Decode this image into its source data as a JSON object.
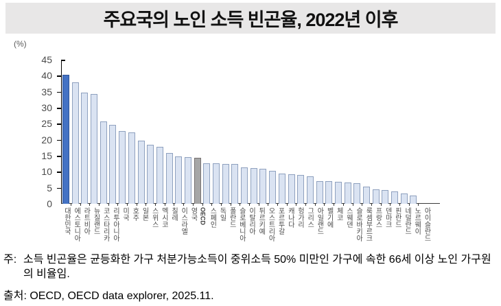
{
  "title": "주요국의 노인 소득 빈곤율, 2022년 이후",
  "y_axis": {
    "unit": "(%)",
    "min": 0,
    "max": 45,
    "step": 5
  },
  "chart_data": {
    "type": "bar",
    "title": "주요국의 노인 소득 빈곤율, 2022년 이후",
    "xlabel": "",
    "ylabel": "(%)",
    "ylim": [
      0,
      45
    ],
    "ytick_step": 5,
    "grid": false,
    "legend": "none",
    "categories": [
      "대한민국",
      "에스토니아",
      "라트비아",
      "뉴질랜드",
      "코스타리카",
      "리투아니아",
      "미국",
      "호주",
      "일본",
      "스위스",
      "멕시코",
      "칠레",
      "이스라엘",
      "영국",
      "OECD",
      "스페인",
      "독일",
      "폴란드",
      "슬로베니아",
      "이탈리아",
      "튀르키예",
      "오스트리아",
      "포르투갈",
      "캐나다",
      "헝가리",
      "그리스",
      "아일랜드",
      "벨기에",
      "체코",
      "스웨덴",
      "슬로바키아",
      "룩셈부르크",
      "프랑스",
      "덴마크",
      "핀란드",
      "네덜란드",
      "노르웨이",
      "아이슬란드"
    ],
    "values": [
      40.4,
      38.0,
      34.8,
      34.2,
      25.8,
      24.6,
      22.8,
      22.4,
      19.8,
      18.5,
      17.9,
      15.9,
      14.9,
      14.6,
      14.3,
      12.7,
      12.6,
      12.5,
      12.4,
      11.4,
      11.2,
      10.9,
      10.4,
      9.4,
      9.3,
      9.1,
      8.6,
      7.1,
      7.0,
      6.8,
      6.6,
      6.4,
      5.4,
      4.5,
      4.2,
      3.9,
      3.3,
      2.5
    ],
    "bar_styles": {
      "default": {
        "fill": "#DAE3F2",
        "border": "#8EA0BE"
      },
      "highlight_index": 0,
      "highlight": {
        "fill": "#4472C4",
        "border": "#2E5395"
      },
      "neutral_index": 14,
      "neutral": {
        "fill": "#A6A6A6",
        "border": "#757070"
      }
    }
  },
  "footnote": {
    "label": "주:",
    "text": "소득 빈곤율은 균등화한 가구 처분가능소득이 중위소득 50% 미만인 가구에 속한 66세 이상 노인 가구원의 비율임."
  },
  "source": {
    "text": "출처: OECD, OECD data explorer, 2025.11."
  }
}
